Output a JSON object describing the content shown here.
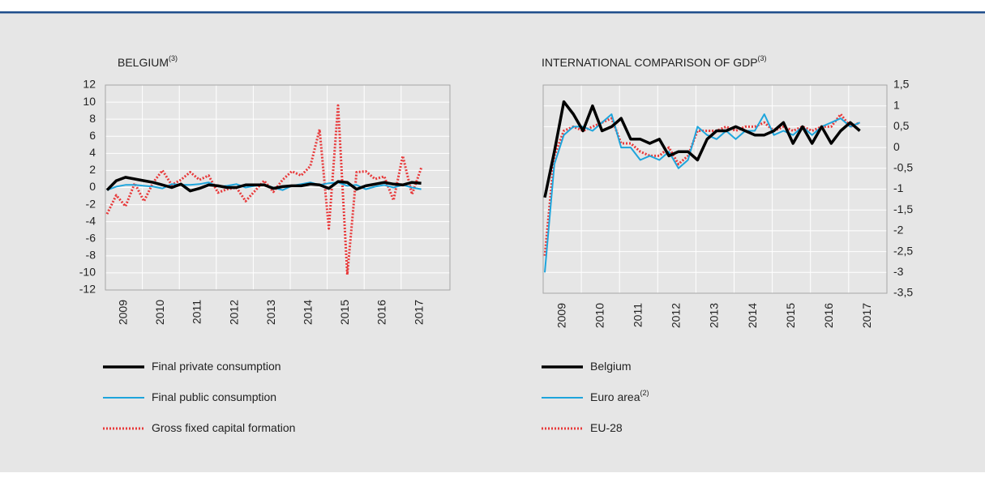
{
  "chart_data": [
    {
      "type": "line",
      "title": "BELGIUM",
      "title_superscript": "(3)",
      "categories": [
        "2009",
        null,
        null,
        null,
        "2010",
        null,
        null,
        null,
        "2011",
        null,
        null,
        null,
        "2012",
        null,
        null,
        null,
        "2013",
        null,
        null,
        null,
        "2014",
        null,
        null,
        null,
        "2015",
        null,
        null,
        null,
        "2016",
        null,
        null,
        null,
        "2017",
        null,
        null
      ],
      "ylim": [
        -12,
        12
      ],
      "yticks": [
        -12,
        -10,
        -8,
        -6,
        -4,
        -2,
        0,
        2,
        4,
        6,
        8,
        10,
        12
      ],
      "y_axis_side": "left",
      "grid": true,
      "series": [
        {
          "name": "Final private consumption",
          "color": "#000000",
          "style": "solid",
          "values": [
            -0.3,
            0.8,
            1.2,
            1.0,
            0.8,
            0.6,
            0.3,
            0.0,
            0.4,
            -0.4,
            -0.1,
            0.3,
            0.2,
            0.0,
            0.0,
            0.3,
            0.3,
            0.3,
            -0.1,
            0.1,
            0.2,
            0.2,
            0.4,
            0.3,
            -0.1,
            0.7,
            0.6,
            -0.2,
            0.2,
            0.4,
            0.6,
            0.4,
            0.3,
            0.6,
            0.5
          ]
        },
        {
          "name": "Final public consumption",
          "color": "#1ea5dc",
          "style": "thin",
          "values": [
            -0.3,
            0.1,
            0.3,
            0.3,
            0.2,
            0.1,
            -0.1,
            0.4,
            0.3,
            0.3,
            0.4,
            0.6,
            0.1,
            0.2,
            0.4,
            0.0,
            0.2,
            0.3,
            0.0,
            -0.3,
            0.2,
            0.4,
            0.6,
            0.3,
            0.5,
            0.6,
            0.2,
            0.3,
            -0.2,
            0.1,
            0.3,
            0.0,
            0.3,
            0.0,
            -0.2
          ]
        },
        {
          "name": "Gross fixed capital formation",
          "color": "#e8393a",
          "style": "dotted",
          "values": [
            -3.1,
            -0.9,
            -2.2,
            0.5,
            -1.6,
            0.6,
            2.0,
            0.3,
            0.9,
            1.8,
            0.9,
            1.4,
            -0.6,
            -0.2,
            0.0,
            -1.6,
            -0.4,
            0.8,
            -0.5,
            0.9,
            1.9,
            1.4,
            2.5,
            6.8,
            -4.8,
            9.6,
            -10.2,
            1.8,
            1.9,
            1.0,
            1.3,
            -1.5,
            3.7,
            -0.8,
            2.3
          ]
        }
      ]
    },
    {
      "type": "line",
      "title": "INTERNATIONAL COMPARISON OF GDP",
      "title_superscript": "(3)",
      "categories": [
        "2009",
        null,
        null,
        null,
        "2010",
        null,
        null,
        null,
        "2011",
        null,
        null,
        null,
        "2012",
        null,
        null,
        null,
        "2013",
        null,
        null,
        null,
        "2014",
        null,
        null,
        null,
        "2015",
        null,
        null,
        null,
        "2016",
        null,
        null,
        null,
        "2017",
        null
      ],
      "ylim": [
        -3.5,
        1.5
      ],
      "yticks": [
        {
          "value": -3.5,
          "label": "-3,5"
        },
        -3,
        {
          "value": -2.5,
          "label": "-2,5"
        },
        -2,
        {
          "value": -1.5,
          "label": "-1,5"
        },
        -1,
        {
          "value": -0.5,
          "label": "-0,5"
        },
        0,
        {
          "value": 0.5,
          "label": "0,5"
        },
        1,
        {
          "value": 1.5,
          "label": "1,5"
        }
      ],
      "y_axis_side": "right",
      "grid": true,
      "series": [
        {
          "name": "Belgium",
          "color": "#000000",
          "style": "solid",
          "values": [
            -1.2,
            -0.1,
            1.1,
            0.8,
            0.4,
            1.0,
            0.4,
            0.5,
            0.7,
            0.2,
            0.2,
            0.1,
            0.2,
            -0.2,
            -0.1,
            -0.1,
            -0.3,
            0.2,
            0.4,
            0.4,
            0.5,
            0.4,
            0.3,
            0.3,
            0.4,
            0.6,
            0.1,
            0.5,
            0.1,
            0.5,
            0.1,
            0.4,
            0.6,
            0.4
          ]
        },
        {
          "name": "Euro area",
          "name_superscript": "(2)",
          "color": "#1ea5dc",
          "style": "thin",
          "values": [
            -3.0,
            -0.4,
            0.3,
            0.5,
            0.5,
            0.4,
            0.6,
            0.8,
            0.0,
            0.0,
            -0.3,
            -0.2,
            -0.3,
            -0.1,
            -0.5,
            -0.3,
            0.5,
            0.3,
            0.2,
            0.4,
            0.2,
            0.4,
            0.4,
            0.8,
            0.3,
            0.4,
            0.3,
            0.5,
            0.3,
            0.5,
            0.6,
            0.7,
            0.5,
            0.6
          ]
        },
        {
          "name": "EU-28",
          "color": "#e8393a",
          "style": "dotted",
          "values": [
            -2.6,
            -0.2,
            0.4,
            0.5,
            0.4,
            0.5,
            0.6,
            0.7,
            0.1,
            0.1,
            -0.1,
            -0.2,
            -0.2,
            0.0,
            -0.4,
            -0.2,
            0.4,
            0.4,
            0.4,
            0.5,
            0.4,
            0.5,
            0.5,
            0.6,
            0.4,
            0.5,
            0.4,
            0.5,
            0.4,
            0.5,
            0.5,
            0.8,
            0.5,
            0.6
          ]
        }
      ]
    }
  ]
}
